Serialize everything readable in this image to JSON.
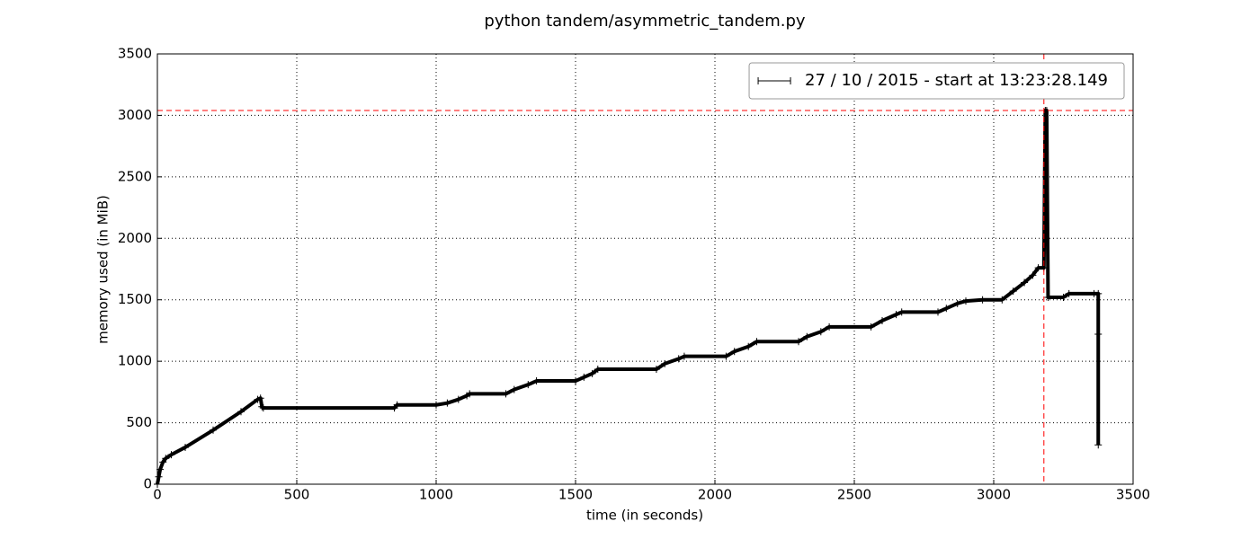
{
  "chart_data": {
    "type": "line",
    "title": "python tandem/asymmetric_tandem.py",
    "xlabel": "time (in seconds)",
    "ylabel": "memory used (in MiB)",
    "series": [
      {
        "name": "27 / 10 / 2015 - start at 13:23:28.149",
        "color": "#000000",
        "x": [
          0,
          5,
          10,
          20,
          30,
          50,
          100,
          200,
          300,
          360,
          370,
          375,
          380,
          850,
          860,
          1000,
          1040,
          1080,
          1110,
          1120,
          1250,
          1280,
          1330,
          1360,
          1500,
          1530,
          1560,
          1580,
          1790,
          1820,
          1870,
          1890,
          2040,
          2070,
          2120,
          2150,
          2300,
          2330,
          2380,
          2410,
          2560,
          2600,
          2650,
          2670,
          2800,
          2830,
          2870,
          2900,
          2960,
          3030,
          3070,
          3110,
          3140,
          3160,
          3180,
          3185,
          3190,
          3195,
          3250,
          3270,
          3360,
          3375,
          3375,
          3375
        ],
        "values": [
          0,
          60,
          120,
          180,
          210,
          240,
          300,
          440,
          590,
          690,
          700,
          630,
          620,
          620,
          645,
          645,
          660,
          690,
          720,
          735,
          735,
          770,
          810,
          840,
          840,
          870,
          900,
          935,
          935,
          980,
          1020,
          1040,
          1040,
          1080,
          1120,
          1160,
          1160,
          1200,
          1240,
          1280,
          1280,
          1330,
          1380,
          1400,
          1400,
          1430,
          1470,
          1490,
          1500,
          1500,
          1570,
          1640,
          1700,
          1760,
          1760,
          3040,
          3040,
          1520,
          1520,
          1550,
          1550,
          1550,
          1220,
          320
        ]
      }
    ],
    "hlines": [
      {
        "value": 3040,
        "color": "#ff0000"
      }
    ],
    "vlines": [
      {
        "value": 3180,
        "color": "#ff0000"
      }
    ],
    "xlim": [
      0,
      3500
    ],
    "xticks": [
      0,
      500,
      1000,
      1500,
      2000,
      2500,
      3000,
      3500
    ],
    "ylim": [
      0,
      3500
    ],
    "yticks": [
      0,
      500,
      1000,
      1500,
      2000,
      2500,
      3000,
      3500
    ],
    "grid": true,
    "legend": "upper right"
  }
}
